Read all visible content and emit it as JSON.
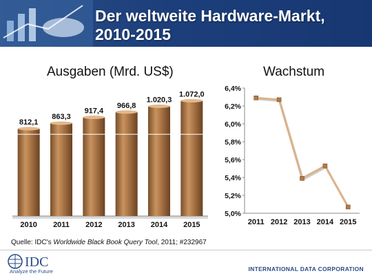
{
  "header": {
    "title_line1": "Der weltweite Hardware-Markt,",
    "title_line2": "2010-2015"
  },
  "chart_data": [
    {
      "type": "bar",
      "title": "Ausgaben (Mrd. US$)",
      "categories": [
        "2010",
        "2011",
        "2012",
        "2013",
        "2014",
        "2015"
      ],
      "values": [
        812.1,
        863.3,
        917.4,
        966.8,
        1020.3,
        1072.0
      ],
      "value_labels": [
        "812,1",
        "863,3",
        "917,4",
        "966,8",
        "1.020,3",
        "1.072,0"
      ],
      "color": "#b07a4a",
      "ylim": [
        0,
        1100
      ]
    },
    {
      "type": "line",
      "title": "Wachstum",
      "x": [
        "2011",
        "2012",
        "2013",
        "2014",
        "2015"
      ],
      "values": [
        6.29,
        6.27,
        5.39,
        5.53,
        5.07
      ],
      "ylim": [
        5.0,
        6.4
      ],
      "yticks": [
        "5,0%",
        "5,2%",
        "5,4%",
        "5,6%",
        "5,8%",
        "6,0%",
        "6,2%",
        "6,4%"
      ],
      "color": "#b07a4a"
    }
  ],
  "footer": {
    "source_prefix": "Quelle: IDC's ",
    "source_italic": "Worldwide Black Book Query Tool",
    "source_suffix": ", 2011;  #232967",
    "logo_text": "IDC",
    "tagline": "Analyze the Future",
    "corporation": "INTERNATIONAL DATA CORPORATION"
  }
}
